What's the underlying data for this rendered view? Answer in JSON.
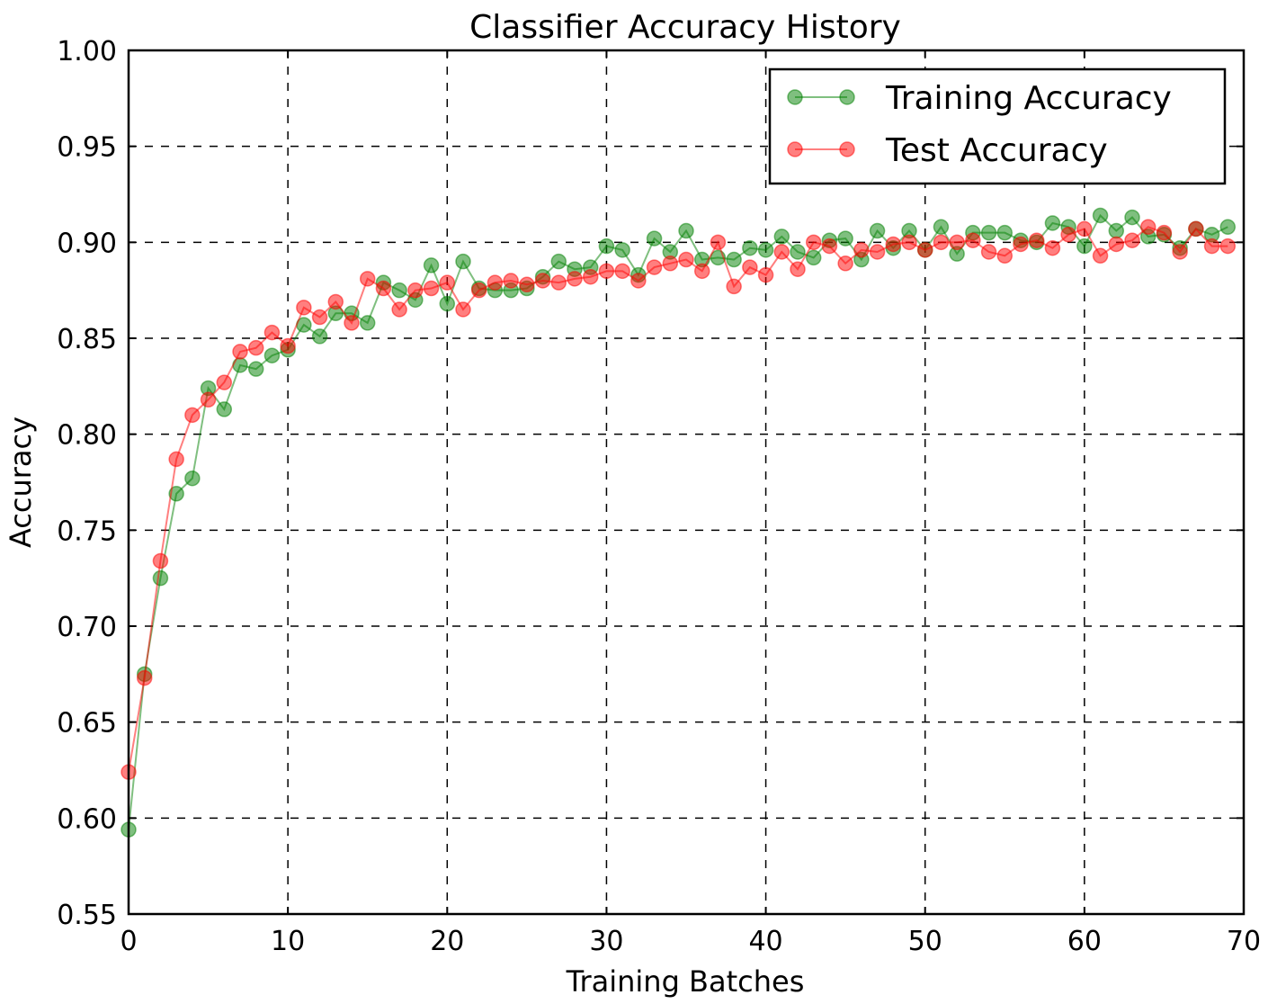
{
  "chart_data": {
    "type": "line",
    "title": "Classifier Accuracy History",
    "xlabel": "Training Batches",
    "ylabel": "Accuracy",
    "xlim": [
      0,
      70
    ],
    "ylim": [
      0.55,
      1.0
    ],
    "xticks": [
      0,
      10,
      20,
      30,
      40,
      50,
      60,
      70
    ],
    "xtick_labels": [
      "0",
      "10",
      "20",
      "30",
      "40",
      "50",
      "60",
      "70"
    ],
    "yticks": [
      0.55,
      0.6,
      0.65,
      0.7,
      0.75,
      0.8,
      0.85,
      0.9,
      0.95,
      1.0
    ],
    "ytick_labels": [
      "0.55",
      "0.60",
      "0.65",
      "0.70",
      "0.75",
      "0.80",
      "0.85",
      "0.90",
      "0.95",
      "1.00"
    ],
    "grid": true,
    "legend_position": "top-right",
    "x": [
      0,
      1,
      2,
      3,
      4,
      5,
      6,
      7,
      8,
      9,
      10,
      11,
      12,
      13,
      14,
      15,
      16,
      17,
      18,
      19,
      20,
      21,
      22,
      23,
      24,
      25,
      26,
      27,
      28,
      29,
      30,
      31,
      32,
      33,
      34,
      35,
      36,
      37,
      38,
      39,
      40,
      41,
      42,
      43,
      44,
      45,
      46,
      47,
      48,
      49,
      50,
      51,
      52,
      53,
      54,
      55,
      56,
      57,
      58,
      59,
      60,
      61,
      62,
      63,
      64,
      65,
      66,
      67,
      68,
      69
    ],
    "series": [
      {
        "name": "Training Accuracy",
        "color": "#008000",
        "values": [
          0.594,
          0.675,
          0.725,
          0.769,
          0.777,
          0.824,
          0.813,
          0.836,
          0.834,
          0.841,
          0.844,
          0.857,
          0.851,
          0.863,
          0.863,
          0.858,
          0.879,
          0.875,
          0.87,
          0.888,
          0.868,
          0.89,
          0.876,
          0.875,
          0.875,
          0.876,
          0.882,
          0.89,
          0.886,
          0.887,
          0.898,
          0.896,
          0.883,
          0.902,
          0.895,
          0.906,
          0.891,
          0.892,
          0.891,
          0.897,
          0.896,
          0.903,
          0.895,
          0.892,
          0.901,
          0.902,
          0.891,
          0.906,
          0.897,
          0.906,
          0.896,
          0.908,
          0.894,
          0.905,
          0.905,
          0.905,
          0.901,
          0.9,
          0.91,
          0.908,
          0.898,
          0.914,
          0.906,
          0.913,
          0.903,
          0.904,
          0.897,
          0.907,
          0.904,
          0.908
        ]
      },
      {
        "name": "Test Accuracy",
        "color": "#ff0000",
        "values": [
          0.624,
          0.673,
          0.734,
          0.787,
          0.81,
          0.818,
          0.827,
          0.843,
          0.845,
          0.853,
          0.846,
          0.866,
          0.861,
          0.869,
          0.858,
          0.881,
          0.876,
          0.865,
          0.875,
          0.876,
          0.879,
          0.865,
          0.875,
          0.879,
          0.88,
          0.878,
          0.88,
          0.879,
          0.881,
          0.882,
          0.885,
          0.885,
          0.88,
          0.887,
          0.889,
          0.891,
          0.885,
          0.9,
          0.877,
          0.887,
          0.883,
          0.895,
          0.886,
          0.9,
          0.898,
          0.889,
          0.896,
          0.895,
          0.899,
          0.9,
          0.896,
          0.9,
          0.9,
          0.901,
          0.895,
          0.893,
          0.899,
          0.901,
          0.897,
          0.904,
          0.907,
          0.893,
          0.899,
          0.901,
          0.908,
          0.905,
          0.895,
          0.907,
          0.898,
          0.898
        ]
      }
    ]
  }
}
